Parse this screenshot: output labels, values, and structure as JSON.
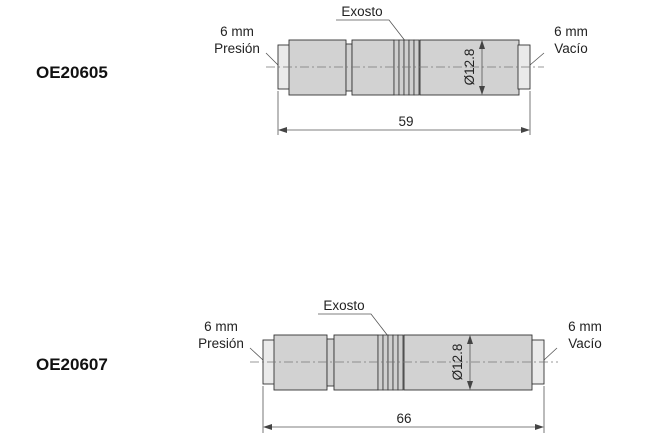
{
  "fittings": [
    {
      "code": "OE20605",
      "left_port": {
        "size": "6 mm",
        "function": "Presión"
      },
      "right_port": {
        "size": "6 mm",
        "function": "Vacío"
      },
      "exhaust_label": "Exosto",
      "diameter_label": "Ø12.8",
      "length_label": "59",
      "length_mm": 59,
      "diameter_mm": 12.8
    },
    {
      "code": "OE20607",
      "left_port": {
        "size": "6 mm",
        "function": "Presión"
      },
      "right_port": {
        "size": "6 mm",
        "function": "Vacío"
      },
      "exhaust_label": "Exosto",
      "diameter_label": "Ø12.8",
      "length_label": "66",
      "length_mm": 66,
      "diameter_mm": 12.8
    }
  ]
}
